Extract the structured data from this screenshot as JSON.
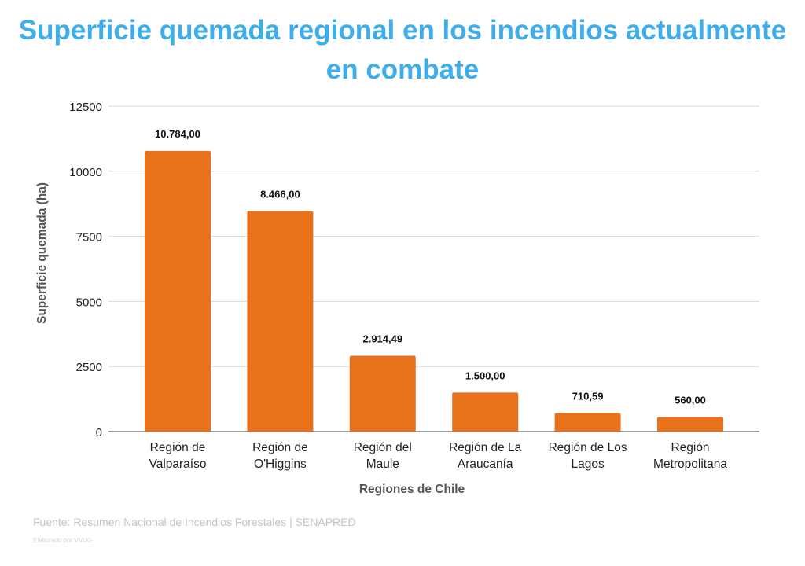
{
  "chart_data": {
    "type": "bar",
    "title_lines": [
      "Superficie quemada regional en los incendios actualmente",
      "en combate"
    ],
    "xlabel": "Regiones de Chile",
    "ylabel": "Superficie quemada (ha)",
    "categories": [
      [
        "Región de",
        "Valparaíso"
      ],
      [
        "Región de",
        "O'Higgins"
      ],
      [
        "Región del",
        "Maule"
      ],
      [
        "Región de La",
        "Araucanía"
      ],
      [
        "Región de Los",
        "Lagos"
      ],
      [
        "Región",
        "Metropolitana"
      ]
    ],
    "values": [
      10784.0,
      8466.0,
      2914.49,
      1500.0,
      710.59,
      560.0
    ],
    "data_labels": [
      "10.784,00",
      "8.466,00",
      "2.914,49",
      "1.500,00",
      "710,59",
      "560,00"
    ],
    "ylim": [
      0,
      12500
    ],
    "yticks": [
      0,
      2500,
      5000,
      7500,
      10000,
      12500
    ],
    "grid": true,
    "legend": "none",
    "colors": {
      "bar": "#e8721c",
      "title": "#3daeea"
    }
  },
  "footer": {
    "source": "Fuente: Resumen Nacional de Incendios Forestales | SENAPRED",
    "credit": "Elaborado por VVUG"
  }
}
